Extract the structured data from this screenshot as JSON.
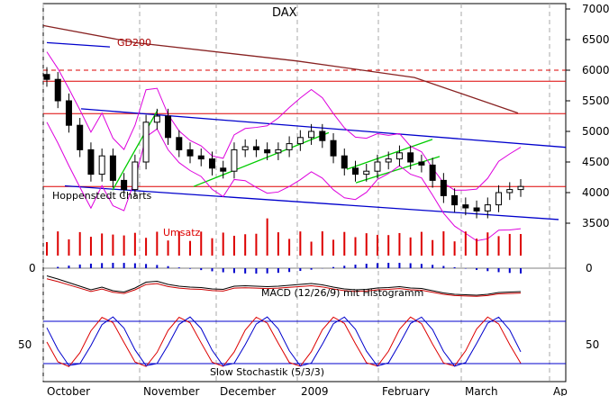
{
  "chart_data": {
    "type": "candlestick",
    "title": "DAX",
    "source_label": "Hoppenstedt Charts",
    "price_panel": {
      "y_ticks": [
        7000,
        6500,
        6000,
        5500,
        5000,
        4500,
        4000,
        3500
      ],
      "ylim": [
        3300,
        7100
      ],
      "annotation_gd200": "GD200",
      "horizontal_levels": [
        {
          "value": 6000,
          "style": "dashed",
          "color": "#dd0000"
        },
        {
          "value": 5820,
          "style": "solid",
          "color": "#dd0000"
        },
        {
          "value": 5290,
          "style": "solid",
          "color": "#dd0000"
        },
        {
          "value": 4100,
          "style": "solid",
          "color": "#dd0000"
        }
      ],
      "approx_closes": [
        5850,
        5500,
        5100,
        4700,
        4300,
        4600,
        4200,
        4050,
        4500,
        5150,
        5250,
        4900,
        4700,
        4600,
        4550,
        4400,
        4350,
        4700,
        4750,
        4700,
        4650,
        4700,
        4800,
        4900,
        5000,
        4850,
        4600,
        4400,
        4300,
        4350,
        4500,
        4550,
        4650,
        4500,
        4450,
        4200,
        3950,
        3800,
        3750,
        3700,
        3800,
        4000,
        4050,
        4100
      ]
    },
    "volume_panel": {
      "label": "Umsatz",
      "color": "#dd0000"
    },
    "macd_panel": {
      "label": "MACD (12/26/9) mit Histogramm",
      "y_ticks": [
        0
      ]
    },
    "stochastic_panel": {
      "label": "Slow Stochastik (5/3/3)",
      "y_ticks": [
        50
      ]
    },
    "x_ticks": [
      "October",
      "November",
      "December",
      "2009",
      "February",
      "March",
      "Ap"
    ],
    "colors": {
      "grid": "#aaaaaa",
      "bollinger": "#dd00dd",
      "gd200": "#882222",
      "channel": "#0000cc",
      "trend": "#00cc00",
      "volume": "#dd0000",
      "macd_hist": "#0000cc",
      "stoch_k": "#dd0000",
      "stoch_d": "#0000cc"
    }
  }
}
